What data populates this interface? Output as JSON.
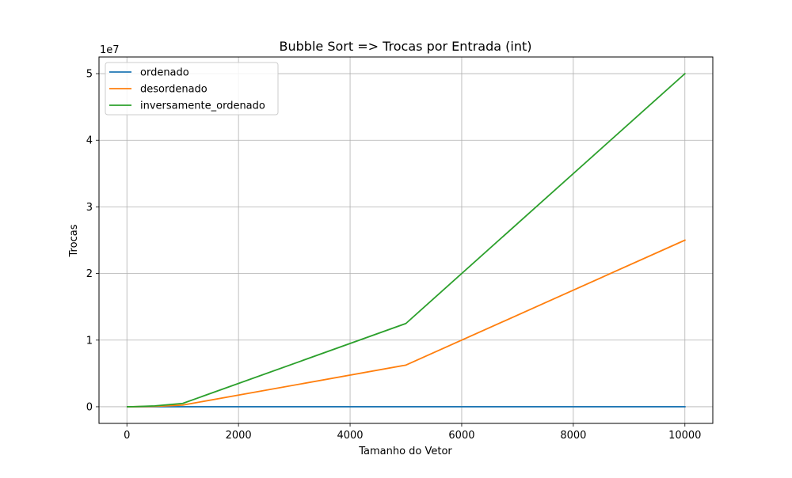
{
  "chart_data": {
    "type": "line",
    "title": "Bubble Sort => Trocas por Entrada (int)",
    "xlabel": "Tamanho do Vetor",
    "ylabel": "Trocas",
    "y_offset_label": "1e7",
    "y_scale": 10000000,
    "xlim": [
      -500,
      10500
    ],
    "ylim": [
      -2500000,
      52500000
    ],
    "x_ticks": [
      0,
      2000,
      4000,
      6000,
      8000,
      10000
    ],
    "x_tick_labels": [
      "0",
      "2000",
      "4000",
      "6000",
      "8000",
      "10000"
    ],
    "y_ticks": [
      0,
      10000000,
      20000000,
      30000000,
      40000000,
      50000000
    ],
    "y_tick_labels": [
      "0",
      "1",
      "2",
      "3",
      "4",
      "5"
    ],
    "grid": true,
    "legend_position": "top-left",
    "x": [
      10,
      100,
      500,
      1000,
      5000,
      10000
    ],
    "series": [
      {
        "name": "ordenado",
        "color": "#1f77b4",
        "values": [
          0,
          0,
          0,
          0,
          0,
          0
        ]
      },
      {
        "name": "desordenado",
        "color": "#ff7f0e",
        "values": [
          25,
          2500,
          62000,
          250000,
          6250000,
          25000000
        ]
      },
      {
        "name": "inversamente_ordenado",
        "color": "#2ca02c",
        "values": [
          45,
          4950,
          124750,
          499500,
          12497500,
          49995000
        ]
      }
    ]
  }
}
